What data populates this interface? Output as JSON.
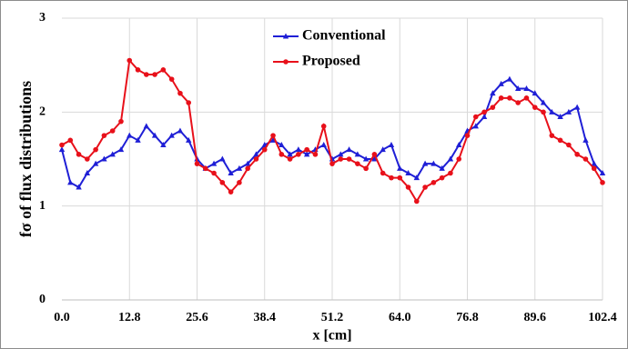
{
  "chart_data": {
    "type": "line",
    "xlabel": "x [cm]",
    "ylabel": "fσ of flux distributions",
    "x": [
      0,
      1.6,
      3.2,
      4.8,
      6.4,
      8,
      9.6,
      11.2,
      12.8,
      14.4,
      16,
      17.6,
      19.2,
      20.8,
      22.4,
      24,
      25.6,
      27.2,
      28.8,
      30.4,
      32,
      33.6,
      35.2,
      36.8,
      38.4,
      40,
      41.6,
      43.2,
      44.8,
      46.4,
      48,
      49.6,
      51.2,
      52.8,
      54.4,
      56,
      57.6,
      59.2,
      60.8,
      62.4,
      64,
      65.6,
      67.2,
      68.8,
      70.4,
      72,
      73.6,
      75.2,
      76.8,
      78.4,
      80,
      81.6,
      83.2,
      84.8,
      86.4,
      88,
      89.6,
      91.2,
      92.8,
      94.4,
      96,
      97.6,
      99.2,
      100.8,
      102.4
    ],
    "series": [
      {
        "name": "Conventional",
        "color": "#1f1fd6",
        "marker": "triangle",
        "values": [
          1.6,
          1.25,
          1.2,
          1.35,
          1.45,
          1.5,
          1.55,
          1.6,
          1.75,
          1.7,
          1.85,
          1.75,
          1.65,
          1.75,
          1.8,
          1.7,
          1.5,
          1.4,
          1.45,
          1.5,
          1.35,
          1.4,
          1.45,
          1.55,
          1.65,
          1.7,
          1.65,
          1.55,
          1.6,
          1.55,
          1.6,
          1.65,
          1.5,
          1.55,
          1.6,
          1.55,
          1.5,
          1.5,
          1.6,
          1.65,
          1.4,
          1.35,
          1.3,
          1.45,
          1.45,
          1.4,
          1.5,
          1.65,
          1.8,
          1.85,
          1.95,
          2.2,
          2.3,
          2.35,
          2.25,
          2.25,
          2.2,
          2.1,
          2.0,
          1.95,
          2.0,
          2.05,
          1.7,
          1.45,
          1.35
        ]
      },
      {
        "name": "Proposed",
        "color": "#e8101a",
        "marker": "circle",
        "values": [
          1.65,
          1.7,
          1.55,
          1.5,
          1.6,
          1.75,
          1.8,
          1.9,
          2.55,
          2.45,
          2.4,
          2.4,
          2.45,
          2.35,
          2.2,
          2.1,
          1.45,
          1.4,
          1.35,
          1.25,
          1.15,
          1.25,
          1.4,
          1.5,
          1.6,
          1.75,
          1.55,
          1.5,
          1.55,
          1.6,
          1.55,
          1.85,
          1.45,
          1.5,
          1.5,
          1.45,
          1.4,
          1.55,
          1.35,
          1.3,
          1.3,
          1.2,
          1.05,
          1.2,
          1.25,
          1.3,
          1.35,
          1.5,
          1.75,
          1.95,
          2.0,
          2.05,
          2.15,
          2.15,
          2.1,
          2.15,
          2.05,
          2.0,
          1.75,
          1.7,
          1.65,
          1.55,
          1.5,
          1.4,
          1.25
        ]
      }
    ],
    "xlim": [
      0,
      102.4
    ],
    "xticks": [
      {
        "value": 0,
        "label": "0.0"
      },
      12.8,
      {
        "value": 25.6,
        "label": "25.6"
      },
      38.4,
      {
        "value": 51.2,
        "label": "51.2"
      },
      {
        "value": 64,
        "label": "64.0"
      },
      76.8,
      89.6,
      102.4
    ],
    "ylim": [
      0,
      3
    ],
    "yticks": [
      0,
      1,
      2,
      3
    ],
    "grid": true,
    "legend": "top"
  }
}
